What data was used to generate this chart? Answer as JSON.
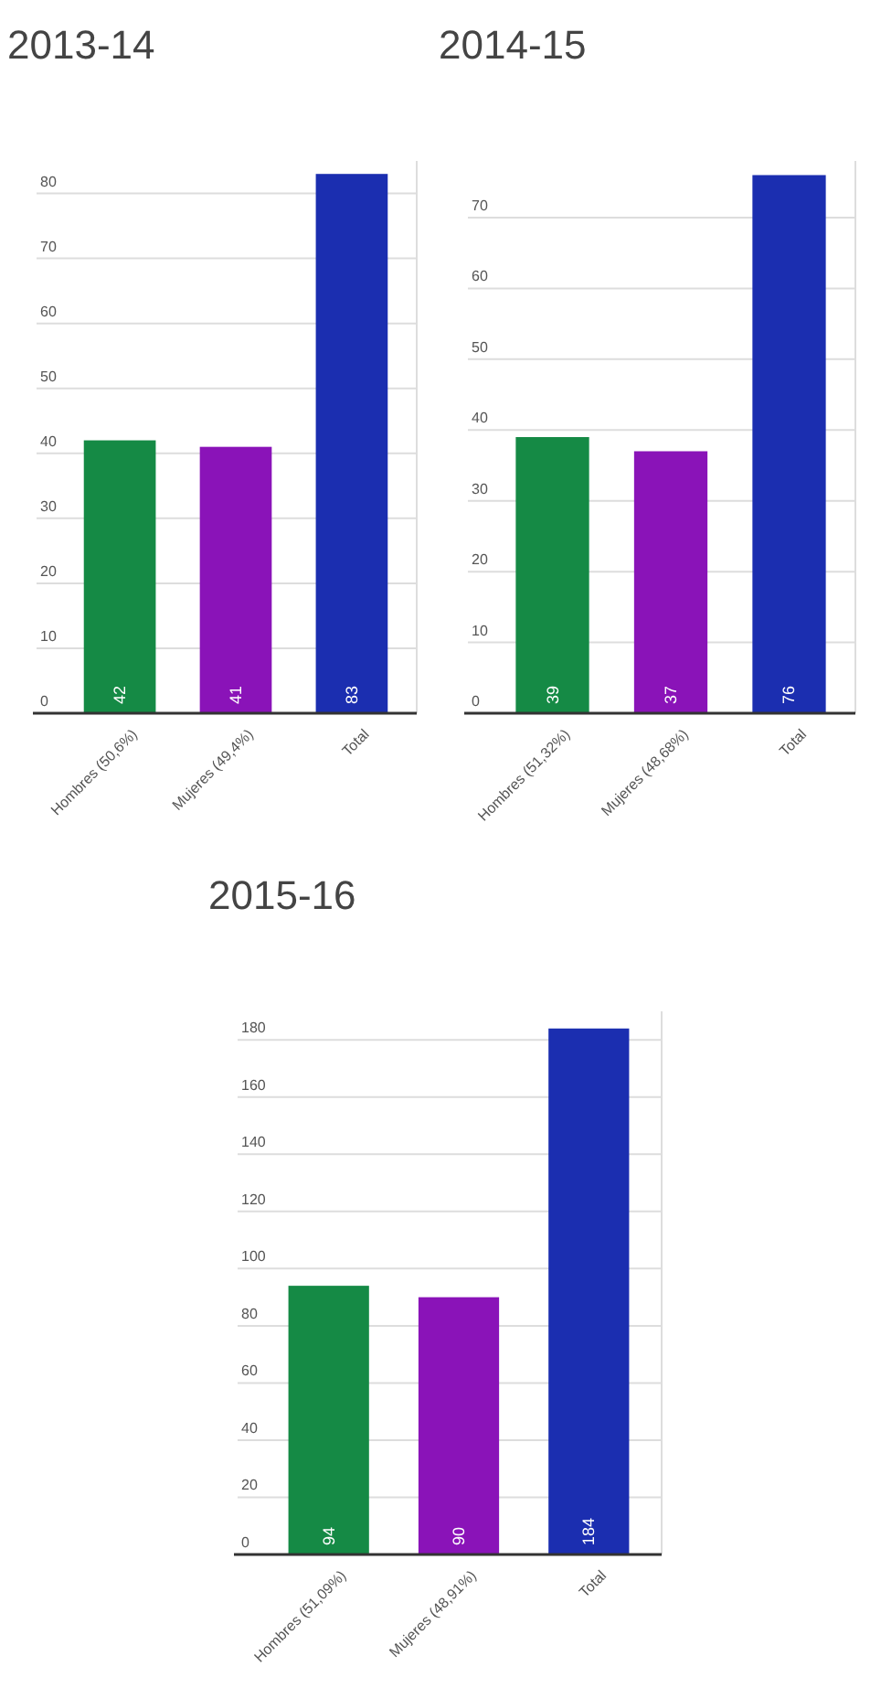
{
  "chart_data": [
    {
      "type": "bar",
      "title": "2013-14",
      "categories": [
        "Hombres (50,6%)",
        "Mujeres (49,4%)",
        "Total"
      ],
      "values": [
        42,
        41,
        83
      ],
      "colors": [
        "#158a45",
        "#8a13b8",
        "#1b2eb0"
      ],
      "ylim": [
        0,
        85
      ],
      "yticks": [
        0,
        10,
        20,
        30,
        40,
        50,
        60,
        70,
        80
      ],
      "grid": "y",
      "data_labels": true
    },
    {
      "type": "bar",
      "title": "2014-15",
      "categories": [
        "Hombres (51,32%)",
        "Mujeres (48,68%)",
        "Total"
      ],
      "values": [
        39,
        37,
        76
      ],
      "colors": [
        "#158a45",
        "#8a13b8",
        "#1b2eb0"
      ],
      "ylim": [
        0,
        78
      ],
      "yticks": [
        0,
        10,
        20,
        30,
        40,
        50,
        60,
        70
      ],
      "grid": "y",
      "data_labels": true
    },
    {
      "type": "bar",
      "title": "2015-16",
      "categories": [
        "Hombres (51,09%)",
        "Mujeres (48,91%)",
        "Total"
      ],
      "values": [
        94,
        90,
        184
      ],
      "colors": [
        "#158a45",
        "#8a13b8",
        "#1b2eb0"
      ],
      "ylim": [
        0,
        190
      ],
      "yticks": [
        0,
        20,
        40,
        60,
        80,
        100,
        120,
        140,
        160,
        180
      ],
      "grid": "y",
      "data_labels": true
    }
  ]
}
